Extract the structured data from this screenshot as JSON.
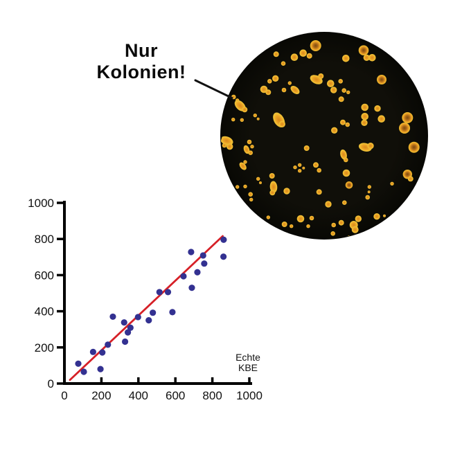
{
  "annotation": {
    "line1": "Nur",
    "line2": "Kolonien!"
  },
  "dish": {
    "background_color": "#0d0c07",
    "colony_outer_color": "#f2c134",
    "colony_mid_color": "#eca427",
    "colony_core_color": "#d8891c",
    "colony_dark_core_color": "#7c4a10",
    "colonies": [
      [
        137.7,
        20,
        8,
        "d"
      ],
      [
        119.7,
        30.7,
        5.3,
        "p"
      ],
      [
        128.7,
        34.7,
        4,
        "p"
      ],
      [
        107,
        36.7,
        5.3,
        "p"
      ],
      [
        80.7,
        32.3,
        4,
        "p"
      ],
      [
        91,
        45.7,
        3.3,
        "p"
      ],
      [
        181.3,
        38.3,
        5.3,
        "p"
      ],
      [
        207,
        26.7,
        7.3,
        "d"
      ],
      [
        211.3,
        37.3,
        4.7,
        "p"
      ],
      [
        219.3,
        37.3,
        5.3,
        "p"
      ],
      [
        233,
        69,
        7,
        "d"
      ],
      [
        79.7,
        67.3,
        4.7,
        "p"
      ],
      [
        71.3,
        71.3,
        3.3,
        "p"
      ],
      [
        63,
        83,
        5.3,
        "p"
      ],
      [
        69.3,
        87.3,
        4,
        "p"
      ],
      [
        92,
        84,
        3.3,
        "p"
      ],
      [
        100.3,
        74,
        2.7,
        "p"
      ],
      [
        108,
        84,
        4.7,
        "o",
        40
      ],
      [
        138.7,
        69,
        6,
        "o",
        25
      ],
      [
        145.3,
        64,
        4,
        "p"
      ],
      [
        159.3,
        74.7,
        5.3,
        "p"
      ],
      [
        163.7,
        84,
        4.7,
        "p"
      ],
      [
        173.7,
        71.3,
        3.3,
        "p"
      ],
      [
        178.7,
        84.7,
        3.3,
        "p"
      ],
      [
        184.7,
        87.3,
        2.7,
        "p"
      ],
      [
        174.7,
        97.3,
        4,
        "p"
      ],
      [
        19.3,
        94,
        3.3,
        "p"
      ],
      [
        24.7,
        99,
        2.7,
        "p"
      ],
      [
        28.7,
        106.7,
        6,
        "o",
        45
      ],
      [
        35.3,
        112.3,
        4,
        "p"
      ],
      [
        208.7,
        109,
        5.3,
        "p"
      ],
      [
        227,
        110.7,
        4.7,
        "p"
      ],
      [
        208.7,
        122.3,
        5.3,
        "p"
      ],
      [
        208,
        131.3,
        4.7,
        "p"
      ],
      [
        232.7,
        125.7,
        5.3,
        "p"
      ],
      [
        270.3,
        124,
        8,
        "d"
      ],
      [
        266,
        139,
        8,
        "d"
      ],
      [
        84.7,
        127.3,
        7.3,
        "o",
        60
      ],
      [
        89.3,
        133.3,
        4.7,
        "p"
      ],
      [
        50.3,
        120.7,
        2.7,
        "p"
      ],
      [
        54.7,
        125.7,
        2,
        "p"
      ],
      [
        18.7,
        126.7,
        2.7,
        "p"
      ],
      [
        31.3,
        127.3,
        2.7,
        "p"
      ],
      [
        177,
        130.7,
        4,
        "p"
      ],
      [
        183.7,
        134,
        3.3,
        "p"
      ],
      [
        164.7,
        142.3,
        4.7,
        "p"
      ],
      [
        9.3,
        157.3,
        6,
        "o",
        20
      ],
      [
        13.7,
        165.7,
        4.7,
        "p"
      ],
      [
        6,
        164,
        3.3,
        "p"
      ],
      [
        42,
        159,
        3.3,
        "p"
      ],
      [
        46,
        165.7,
        2.7,
        "p"
      ],
      [
        38,
        170,
        4,
        "o",
        70
      ],
      [
        43.7,
        174.7,
        3.3,
        "p"
      ],
      [
        209.3,
        166.7,
        6,
        "o",
        15
      ],
      [
        217,
        164.7,
        4.7,
        "p"
      ],
      [
        279.7,
        166.7,
        8,
        "d"
      ],
      [
        124.7,
        168,
        4,
        "p"
      ],
      [
        178,
        177.3,
        4.7,
        "o",
        75
      ],
      [
        181.3,
        185,
        3.3,
        "p"
      ],
      [
        32.7,
        194,
        4,
        "o",
        50
      ],
      [
        36,
        188,
        2.7,
        "p"
      ],
      [
        108,
        195.7,
        2.7,
        "p"
      ],
      [
        114.7,
        192.3,
        2.7,
        "p"
      ],
      [
        114.7,
        200.7,
        2.7,
        "p"
      ],
      [
        120.3,
        196.7,
        2,
        "p"
      ],
      [
        138,
        192.3,
        4,
        "p"
      ],
      [
        142.7,
        200,
        3.3,
        "p"
      ],
      [
        182,
        204,
        5.3,
        "p"
      ],
      [
        270.3,
        205.7,
        6.7,
        "d"
      ],
      [
        274.7,
        212.3,
        4,
        "p"
      ],
      [
        186,
        221.3,
        5.3,
        "d"
      ],
      [
        215.3,
        224,
        2.7,
        "p"
      ],
      [
        214.7,
        231.3,
        2,
        "p"
      ],
      [
        248,
        219.3,
        2.7,
        "p"
      ],
      [
        24.7,
        224,
        2.7,
        "p"
      ],
      [
        36,
        223.3,
        2.7,
        "p"
      ],
      [
        54.7,
        212.3,
        2.7,
        "p"
      ],
      [
        58,
        218,
        2,
        "p"
      ],
      [
        74.7,
        208,
        4,
        "p"
      ],
      [
        77,
        224,
        5.3,
        "o",
        85
      ],
      [
        75.3,
        232.3,
        4,
        "p"
      ],
      [
        96,
        230,
        4.7,
        "p"
      ],
      [
        142.7,
        231.3,
        4,
        "p"
      ],
      [
        43.7,
        234.7,
        3.3,
        "p"
      ],
      [
        44.7,
        242.3,
        2.7,
        "p"
      ],
      [
        156,
        249,
        4.7,
        "p"
      ],
      [
        179.3,
        246.7,
        3.3,
        "p"
      ],
      [
        212.7,
        239,
        3.3,
        "p"
      ],
      [
        69.3,
        268,
        2.7,
        "p"
      ],
      [
        92.7,
        278,
        4,
        "p"
      ],
      [
        102.7,
        280.7,
        2.7,
        "p"
      ],
      [
        116,
        270,
        5.3,
        "p"
      ],
      [
        127,
        280.7,
        2.7,
        "p"
      ],
      [
        132,
        269,
        3.3,
        "p"
      ],
      [
        163.7,
        279,
        3.3,
        "p"
      ],
      [
        174.7,
        275.7,
        4,
        "p"
      ],
      [
        192.7,
        279,
        6,
        "p"
      ],
      [
        194.7,
        285.7,
        5,
        "p"
      ],
      [
        199.3,
        270,
        4.7,
        "p"
      ],
      [
        226,
        266.7,
        4.7,
        "p"
      ],
      [
        237,
        265.7,
        2,
        "p"
      ],
      [
        162.7,
        291.3,
        3.3,
        "p"
      ],
      [
        186,
        296.7,
        2.7,
        "p"
      ]
    ]
  },
  "chart_data": {
    "type": "scatter",
    "title": "",
    "xlabel_lines": [
      "Echte",
      "KBE"
    ],
    "ylabel": "",
    "xlim": [
      0,
      1000
    ],
    "ylim": [
      0,
      1000
    ],
    "x_ticks": [
      0,
      200,
      400,
      600,
      800,
      1000
    ],
    "y_ticks": [
      0,
      200,
      400,
      600,
      800,
      1000
    ],
    "grid": "off",
    "legend": "none",
    "point_color": "#333191",
    "axis_color": "#000000",
    "points": [
      [
        75,
        110
      ],
      [
        105,
        65
      ],
      [
        155,
        175
      ],
      [
        195,
        80
      ],
      [
        205,
        172
      ],
      [
        235,
        215
      ],
      [
        262,
        370
      ],
      [
        323,
        338
      ],
      [
        328,
        232
      ],
      [
        343,
        283
      ],
      [
        357,
        309
      ],
      [
        398,
        368
      ],
      [
        456,
        350
      ],
      [
        478,
        392
      ],
      [
        514,
        506
      ],
      [
        560,
        506
      ],
      [
        584,
        395
      ],
      [
        644,
        594
      ],
      [
        685,
        728
      ],
      [
        689,
        530
      ],
      [
        719,
        616
      ],
      [
        750,
        709
      ],
      [
        756,
        664
      ],
      [
        861,
        796
      ],
      [
        860,
        702
      ]
    ],
    "fit_line": {
      "x1": 30,
      "y1": 20,
      "x2": 856,
      "y2": 816,
      "color": "#d62027"
    }
  }
}
